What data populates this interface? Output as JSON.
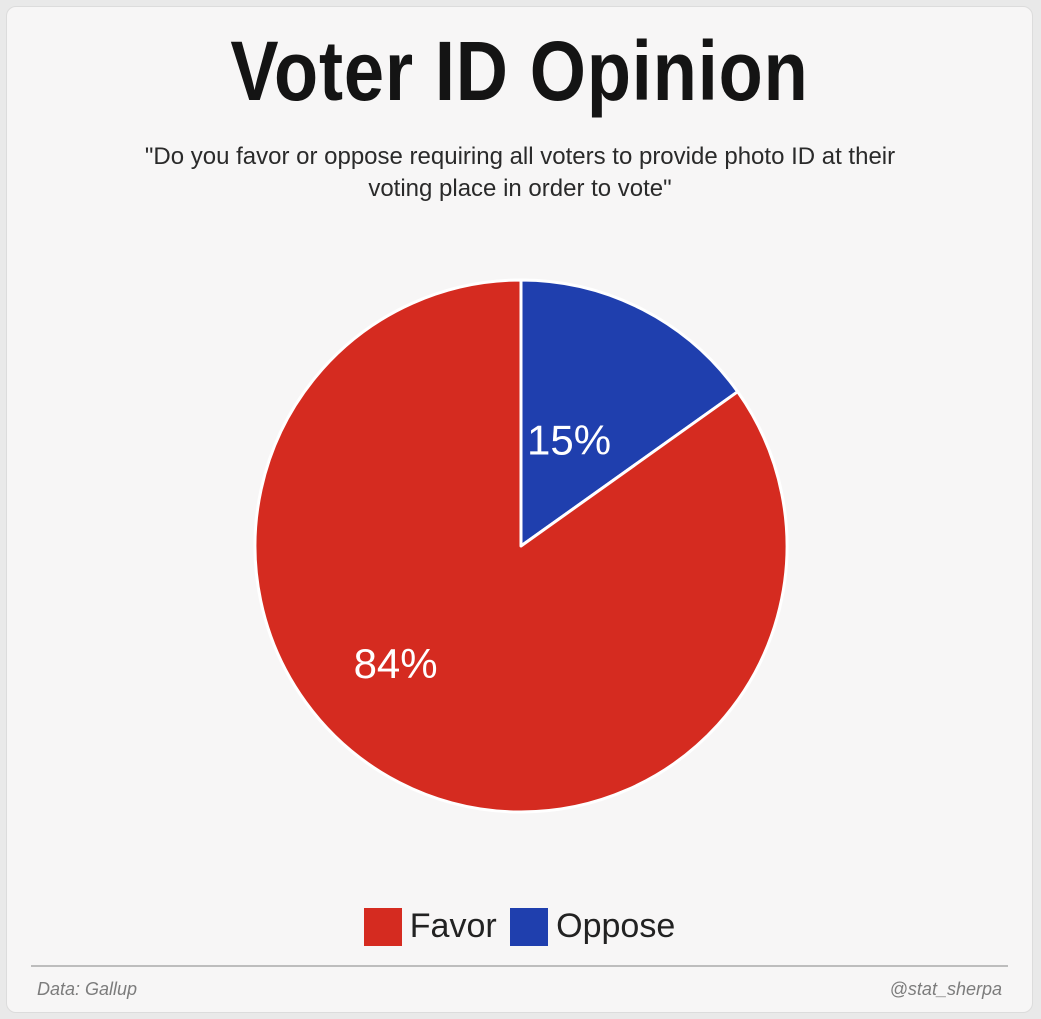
{
  "chart_data": {
    "type": "pie",
    "title": "Voter ID Opinion",
    "subtitle": "\"Do you favor or oppose requiring all voters to provide photo ID at their voting place in order to vote\"",
    "slices": [
      {
        "label": "Oppose",
        "value": 15,
        "value_label": "15%",
        "color": "#1f3fae"
      },
      {
        "label": "Favor",
        "value": 84,
        "value_label": "84%",
        "color": "#d52b20"
      }
    ],
    "legend": [
      {
        "label": "Favor",
        "color": "#d52b20"
      },
      {
        "label": "Oppose",
        "color": "#1f3fae"
      }
    ],
    "legend_position": "bottom",
    "start_angle": "12 o'clock, clockwise"
  },
  "footer": {
    "source": "Data: Gallup",
    "credit": "@stat_sherpa"
  }
}
